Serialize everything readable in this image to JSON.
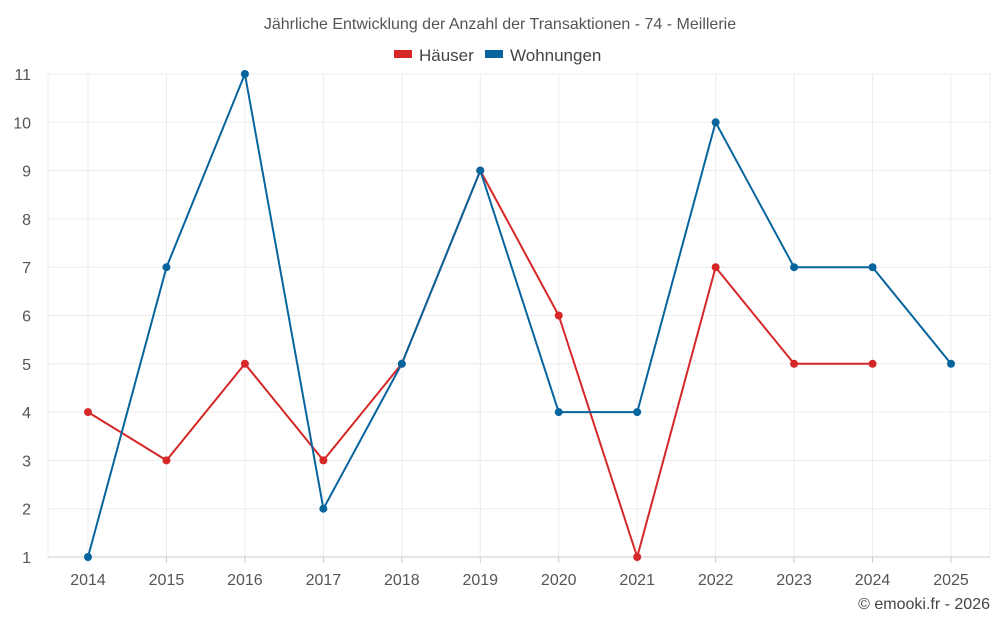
{
  "chart_data": {
    "type": "line",
    "title": "Jährliche Entwicklung der Anzahl der Transaktionen - 74 - Meillerie",
    "xlabel": "",
    "ylabel": "",
    "categories": [
      "2014",
      "2015",
      "2016",
      "2017",
      "2018",
      "2019",
      "2020",
      "2021",
      "2022",
      "2023",
      "2024",
      "2025"
    ],
    "ylim": [
      1,
      11
    ],
    "y_ticks": [
      "1",
      "2",
      "3",
      "4",
      "5",
      "6",
      "7",
      "8",
      "9",
      "10",
      "11"
    ],
    "grid": true,
    "legend_position": "top-center",
    "series": [
      {
        "name": "Häuser",
        "color": "#d62728",
        "values": [
          4,
          3,
          5,
          3,
          5,
          9,
          6,
          1,
          7,
          5,
          5,
          null
        ]
      },
      {
        "name": "Wohnungen",
        "color": "#07659e",
        "values": [
          1,
          7,
          11,
          2,
          5,
          9,
          4,
          4,
          10,
          7,
          7,
          5
        ]
      }
    ]
  },
  "credit": "© emooki.fr - 2026"
}
